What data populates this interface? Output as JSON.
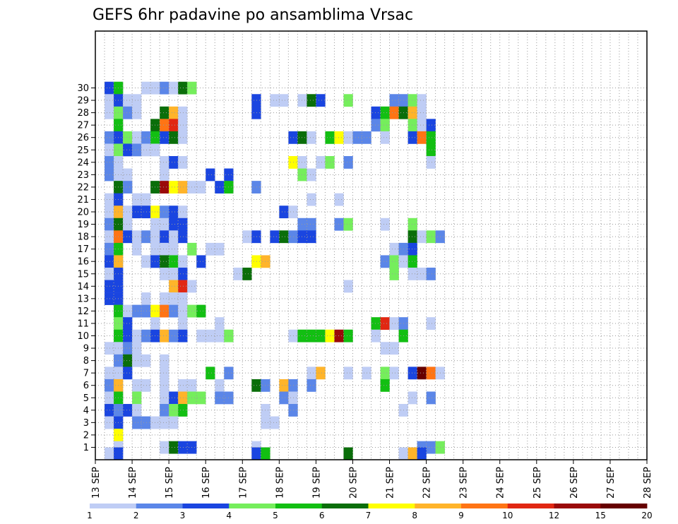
{
  "colors": {
    "palette": [
      "#bfcdf5",
      "#5b86e8",
      "#1a45e0",
      "#75ee5c",
      "#12bf12",
      "#0a6e0a",
      "#ffff00",
      "#ffb42a",
      "#ff7414",
      "#e12712",
      "#9a0a0a",
      "#660000"
    ],
    "frame": "#000000",
    "grid": "#9a9a9a"
  },
  "chart_data": {
    "type": "heatmap",
    "title": "GEFS 6hr padavine po ansamblima Vrsac",
    "xlabel": "",
    "ylabel": "",
    "x_tick_labels": [
      "13 SEP",
      "14 SEP",
      "15 SEP",
      "16 SEP",
      "17 SEP",
      "18 SEP",
      "19 SEP",
      "20 SEP",
      "21 SEP",
      "22 SEP",
      "23 SEP",
      "24 SEP",
      "25 SEP",
      "26 SEP",
      "27 SEP",
      "28 SEP"
    ],
    "y_tick_labels": [
      "1",
      "2",
      "3",
      "4",
      "5",
      "6",
      "7",
      "8",
      "9",
      "10",
      "11",
      "12",
      "13",
      "14",
      "15",
      "16",
      "17",
      "18",
      "19",
      "20",
      "21",
      "22",
      "23",
      "24",
      "25",
      "26",
      "27",
      "28",
      "29",
      "30"
    ],
    "x_step_hours": 6,
    "ylim": [
      0,
      30
    ],
    "colorbar": {
      "labels": [
        "1",
        "2",
        "3",
        "4",
        "5",
        "6",
        "7",
        "8",
        "9",
        "10",
        "12",
        "15",
        "20"
      ],
      "orientation": "horizontal"
    },
    "cells": [
      [
        30,
        1,
        3
      ],
      [
        30,
        2,
        5
      ],
      [
        30,
        5,
        1
      ],
      [
        30,
        6,
        1
      ],
      [
        30,
        7,
        2
      ],
      [
        30,
        8,
        1
      ],
      [
        30,
        9,
        6
      ],
      [
        30,
        10,
        4
      ],
      [
        29,
        1,
        1
      ],
      [
        29,
        2,
        3
      ],
      [
        29,
        3,
        1
      ],
      [
        29,
        4,
        1
      ],
      [
        29,
        17,
        3
      ],
      [
        29,
        19,
        1
      ],
      [
        29,
        20,
        1
      ],
      [
        29,
        22,
        1
      ],
      [
        29,
        23,
        6
      ],
      [
        29,
        24,
        3
      ],
      [
        29,
        27,
        4
      ],
      [
        29,
        32,
        2
      ],
      [
        29,
        33,
        2
      ],
      [
        29,
        34,
        4
      ],
      [
        29,
        35,
        1
      ],
      [
        28,
        1,
        1
      ],
      [
        28,
        2,
        4
      ],
      [
        28,
        3,
        2
      ],
      [
        28,
        4,
        1
      ],
      [
        28,
        7,
        6
      ],
      [
        28,
        8,
        8
      ],
      [
        28,
        9,
        1
      ],
      [
        28,
        17,
        3
      ],
      [
        28,
        30,
        3
      ],
      [
        28,
        31,
        5
      ],
      [
        28,
        32,
        9
      ],
      [
        28,
        33,
        6
      ],
      [
        28,
        34,
        8
      ],
      [
        28,
        35,
        1
      ],
      [
        27,
        2,
        5
      ],
      [
        27,
        6,
        6
      ],
      [
        27,
        7,
        9
      ],
      [
        27,
        8,
        10
      ],
      [
        27,
        9,
        1
      ],
      [
        27,
        30,
        2
      ],
      [
        27,
        31,
        4
      ],
      [
        27,
        34,
        4
      ],
      [
        27,
        35,
        1
      ],
      [
        27,
        36,
        3
      ],
      [
        26,
        1,
        2
      ],
      [
        26,
        2,
        3
      ],
      [
        26,
        3,
        4
      ],
      [
        26,
        4,
        1
      ],
      [
        26,
        5,
        2
      ],
      [
        26,
        6,
        5
      ],
      [
        26,
        7,
        3
      ],
      [
        26,
        8,
        6
      ],
      [
        26,
        9,
        1
      ],
      [
        26,
        21,
        3
      ],
      [
        26,
        22,
        6
      ],
      [
        26,
        23,
        1
      ],
      [
        26,
        25,
        5
      ],
      [
        26,
        26,
        7
      ],
      [
        26,
        27,
        1
      ],
      [
        26,
        28,
        2
      ],
      [
        26,
        29,
        2
      ],
      [
        26,
        31,
        1
      ],
      [
        26,
        34,
        3
      ],
      [
        26,
        35,
        9
      ],
      [
        26,
        36,
        5
      ],
      [
        25,
        1,
        1
      ],
      [
        25,
        2,
        4
      ],
      [
        25,
        3,
        3
      ],
      [
        25,
        4,
        2
      ],
      [
        25,
        5,
        1
      ],
      [
        25,
        6,
        1
      ],
      [
        25,
        36,
        5
      ],
      [
        24,
        1,
        2
      ],
      [
        24,
        2,
        1
      ],
      [
        24,
        7,
        1
      ],
      [
        24,
        8,
        3
      ],
      [
        24,
        9,
        1
      ],
      [
        24,
        21,
        7
      ],
      [
        24,
        22,
        1
      ],
      [
        24,
        24,
        1
      ],
      [
        24,
        25,
        4
      ],
      [
        24,
        27,
        2
      ],
      [
        24,
        36,
        1
      ],
      [
        23,
        1,
        2
      ],
      [
        23,
        2,
        1
      ],
      [
        23,
        3,
        1
      ],
      [
        23,
        7,
        1
      ],
      [
        23,
        12,
        3
      ],
      [
        23,
        14,
        3
      ],
      [
        23,
        22,
        4
      ],
      [
        23,
        23,
        1
      ],
      [
        22,
        2,
        6
      ],
      [
        22,
        3,
        2
      ],
      [
        22,
        6,
        6
      ],
      [
        22,
        7,
        11
      ],
      [
        22,
        8,
        7
      ],
      [
        22,
        9,
        8
      ],
      [
        22,
        10,
        1
      ],
      [
        22,
        11,
        1
      ],
      [
        22,
        13,
        3
      ],
      [
        22,
        14,
        5
      ],
      [
        22,
        17,
        2
      ],
      [
        21,
        1,
        1
      ],
      [
        21,
        2,
        3
      ],
      [
        21,
        4,
        1
      ],
      [
        21,
        5,
        1
      ],
      [
        21,
        23,
        1
      ],
      [
        21,
        26,
        1
      ],
      [
        20,
        1,
        1
      ],
      [
        20,
        2,
        8
      ],
      [
        20,
        3,
        1
      ],
      [
        20,
        4,
        3
      ],
      [
        20,
        5,
        3
      ],
      [
        20,
        6,
        7
      ],
      [
        20,
        7,
        2
      ],
      [
        20,
        8,
        3
      ],
      [
        20,
        9,
        1
      ],
      [
        20,
        20,
        3
      ],
      [
        20,
        21,
        1
      ],
      [
        19,
        1,
        2
      ],
      [
        19,
        2,
        6
      ],
      [
        19,
        3,
        1
      ],
      [
        19,
        6,
        1
      ],
      [
        19,
        7,
        1
      ],
      [
        19,
        8,
        3
      ],
      [
        19,
        9,
        3
      ],
      [
        19,
        22,
        2
      ],
      [
        19,
        23,
        2
      ],
      [
        19,
        26,
        2
      ],
      [
        19,
        27,
        4
      ],
      [
        19,
        31,
        1
      ],
      [
        19,
        34,
        4
      ],
      [
        18,
        1,
        1
      ],
      [
        18,
        2,
        9
      ],
      [
        18,
        3,
        3
      ],
      [
        18,
        4,
        1
      ],
      [
        18,
        5,
        2
      ],
      [
        18,
        6,
        1
      ],
      [
        18,
        7,
        3
      ],
      [
        18,
        8,
        1
      ],
      [
        18,
        9,
        3
      ],
      [
        18,
        16,
        1
      ],
      [
        18,
        17,
        3
      ],
      [
        18,
        19,
        3
      ],
      [
        18,
        20,
        6
      ],
      [
        18,
        21,
        2
      ],
      [
        18,
        22,
        3
      ],
      [
        18,
        23,
        3
      ],
      [
        18,
        34,
        6
      ],
      [
        18,
        35,
        1
      ],
      [
        18,
        36,
        4
      ],
      [
        18,
        37,
        2
      ],
      [
        17,
        1,
        2
      ],
      [
        17,
        2,
        5
      ],
      [
        17,
        4,
        1
      ],
      [
        17,
        6,
        1
      ],
      [
        17,
        7,
        1
      ],
      [
        17,
        8,
        1
      ],
      [
        17,
        10,
        4
      ],
      [
        17,
        12,
        1
      ],
      [
        17,
        13,
        1
      ],
      [
        17,
        32,
        1
      ],
      [
        17,
        33,
        2
      ],
      [
        17,
        34,
        3
      ],
      [
        16,
        1,
        3
      ],
      [
        16,
        2,
        8
      ],
      [
        16,
        5,
        1
      ],
      [
        16,
        6,
        3
      ],
      [
        16,
        7,
        6
      ],
      [
        16,
        8,
        5
      ],
      [
        16,
        9,
        1
      ],
      [
        16,
        11,
        3
      ],
      [
        16,
        17,
        7
      ],
      [
        16,
        18,
        8
      ],
      [
        16,
        31,
        2
      ],
      [
        16,
        32,
        4
      ],
      [
        16,
        33,
        1
      ],
      [
        16,
        34,
        5
      ],
      [
        15,
        1,
        1
      ],
      [
        15,
        2,
        3
      ],
      [
        15,
        7,
        1
      ],
      [
        15,
        8,
        1
      ],
      [
        15,
        9,
        3
      ],
      [
        15,
        15,
        1
      ],
      [
        15,
        16,
        6
      ],
      [
        15,
        32,
        4
      ],
      [
        15,
        34,
        1
      ],
      [
        15,
        35,
        1
      ],
      [
        15,
        36,
        2
      ],
      [
        14,
        1,
        3
      ],
      [
        14,
        2,
        3
      ],
      [
        14,
        8,
        8
      ],
      [
        14,
        9,
        10
      ],
      [
        14,
        10,
        1
      ],
      [
        14,
        27,
        1
      ],
      [
        13,
        1,
        3
      ],
      [
        13,
        2,
        3
      ],
      [
        13,
        5,
        1
      ],
      [
        13,
        7,
        1
      ],
      [
        13,
        8,
        1
      ],
      [
        13,
        9,
        1
      ],
      [
        12,
        2,
        5
      ],
      [
        12,
        3,
        1
      ],
      [
        12,
        4,
        2
      ],
      [
        12,
        5,
        2
      ],
      [
        12,
        6,
        7
      ],
      [
        12,
        7,
        9
      ],
      [
        12,
        8,
        2
      ],
      [
        12,
        9,
        1
      ],
      [
        12,
        10,
        4
      ],
      [
        12,
        11,
        5
      ],
      [
        11,
        2,
        4
      ],
      [
        11,
        3,
        3
      ],
      [
        11,
        6,
        1
      ],
      [
        11,
        9,
        1
      ],
      [
        11,
        13,
        1
      ],
      [
        11,
        30,
        5
      ],
      [
        11,
        31,
        10
      ],
      [
        11,
        32,
        1
      ],
      [
        11,
        33,
        2
      ],
      [
        11,
        36,
        1
      ],
      [
        10,
        2,
        5
      ],
      [
        10,
        3,
        3
      ],
      [
        10,
        4,
        1
      ],
      [
        10,
        5,
        2
      ],
      [
        10,
        6,
        3
      ],
      [
        10,
        7,
        8
      ],
      [
        10,
        8,
        2
      ],
      [
        10,
        9,
        3
      ],
      [
        10,
        11,
        1
      ],
      [
        10,
        12,
        1
      ],
      [
        10,
        13,
        1
      ],
      [
        10,
        14,
        4
      ],
      [
        10,
        21,
        1
      ],
      [
        10,
        22,
        5
      ],
      [
        10,
        23,
        5
      ],
      [
        10,
        24,
        5
      ],
      [
        10,
        25,
        7
      ],
      [
        10,
        26,
        11
      ],
      [
        10,
        27,
        5
      ],
      [
        10,
        30,
        1
      ],
      [
        10,
        33,
        5
      ],
      [
        9,
        1,
        1
      ],
      [
        9,
        2,
        1
      ],
      [
        9,
        3,
        2
      ],
      [
        9,
        4,
        1
      ],
      [
        9,
        31,
        1
      ],
      [
        9,
        32,
        1
      ],
      [
        8,
        2,
        2
      ],
      [
        8,
        3,
        6
      ],
      [
        8,
        4,
        1
      ],
      [
        8,
        5,
        1
      ],
      [
        8,
        7,
        1
      ],
      [
        7,
        1,
        1
      ],
      [
        7,
        2,
        1
      ],
      [
        7,
        3,
        3
      ],
      [
        7,
        7,
        1
      ],
      [
        7,
        12,
        5
      ],
      [
        7,
        14,
        2
      ],
      [
        7,
        23,
        1
      ],
      [
        7,
        24,
        8
      ],
      [
        7,
        27,
        1
      ],
      [
        7,
        29,
        1
      ],
      [
        7,
        31,
        4
      ],
      [
        7,
        32,
        1
      ],
      [
        7,
        34,
        3
      ],
      [
        7,
        35,
        12
      ],
      [
        7,
        36,
        9
      ],
      [
        7,
        37,
        1
      ],
      [
        6,
        1,
        2
      ],
      [
        6,
        2,
        8
      ],
      [
        6,
        4,
        1
      ],
      [
        6,
        5,
        1
      ],
      [
        6,
        7,
        1
      ],
      [
        6,
        9,
        1
      ],
      [
        6,
        10,
        1
      ],
      [
        6,
        13,
        1
      ],
      [
        6,
        17,
        6
      ],
      [
        6,
        18,
        2
      ],
      [
        6,
        20,
        8
      ],
      [
        6,
        21,
        2
      ],
      [
        6,
        23,
        2
      ],
      [
        6,
        31,
        5
      ],
      [
        5,
        1,
        1
      ],
      [
        5,
        2,
        5
      ],
      [
        5,
        4,
        4
      ],
      [
        5,
        7,
        1
      ],
      [
        5,
        8,
        3
      ],
      [
        5,
        9,
        8
      ],
      [
        5,
        10,
        4
      ],
      [
        5,
        11,
        4
      ],
      [
        5,
        13,
        2
      ],
      [
        5,
        14,
        2
      ],
      [
        5,
        20,
        2
      ],
      [
        5,
        21,
        1
      ],
      [
        5,
        34,
        1
      ],
      [
        5,
        36,
        2
      ],
      [
        4,
        1,
        3
      ],
      [
        4,
        2,
        2
      ],
      [
        4,
        3,
        3
      ],
      [
        4,
        4,
        1
      ],
      [
        4,
        7,
        2
      ],
      [
        4,
        8,
        4
      ],
      [
        4,
        9,
        5
      ],
      [
        4,
        18,
        1
      ],
      [
        4,
        21,
        2
      ],
      [
        4,
        33,
        1
      ],
      [
        3,
        1,
        1
      ],
      [
        3,
        2,
        3
      ],
      [
        3,
        4,
        2
      ],
      [
        3,
        5,
        2
      ],
      [
        3,
        6,
        1
      ],
      [
        3,
        7,
        1
      ],
      [
        3,
        8,
        1
      ],
      [
        3,
        18,
        1
      ],
      [
        3,
        19,
        1
      ],
      [
        2,
        2,
        7
      ],
      [
        1,
        2,
        1
      ],
      [
        1,
        7,
        1
      ],
      [
        1,
        8,
        6
      ],
      [
        1,
        9,
        3
      ],
      [
        1,
        10,
        3
      ],
      [
        1,
        17,
        1
      ],
      [
        1,
        35,
        2
      ],
      [
        1,
        36,
        2
      ],
      [
        1,
        37,
        4
      ],
      [
        0.5,
        1,
        1
      ],
      [
        0.5,
        2,
        3
      ],
      [
        0.5,
        17,
        3
      ],
      [
        0.5,
        18,
        5
      ],
      [
        0.5,
        27,
        6
      ],
      [
        0.5,
        33,
        1
      ],
      [
        0.5,
        34,
        8
      ],
      [
        0.5,
        35,
        3
      ]
    ]
  }
}
